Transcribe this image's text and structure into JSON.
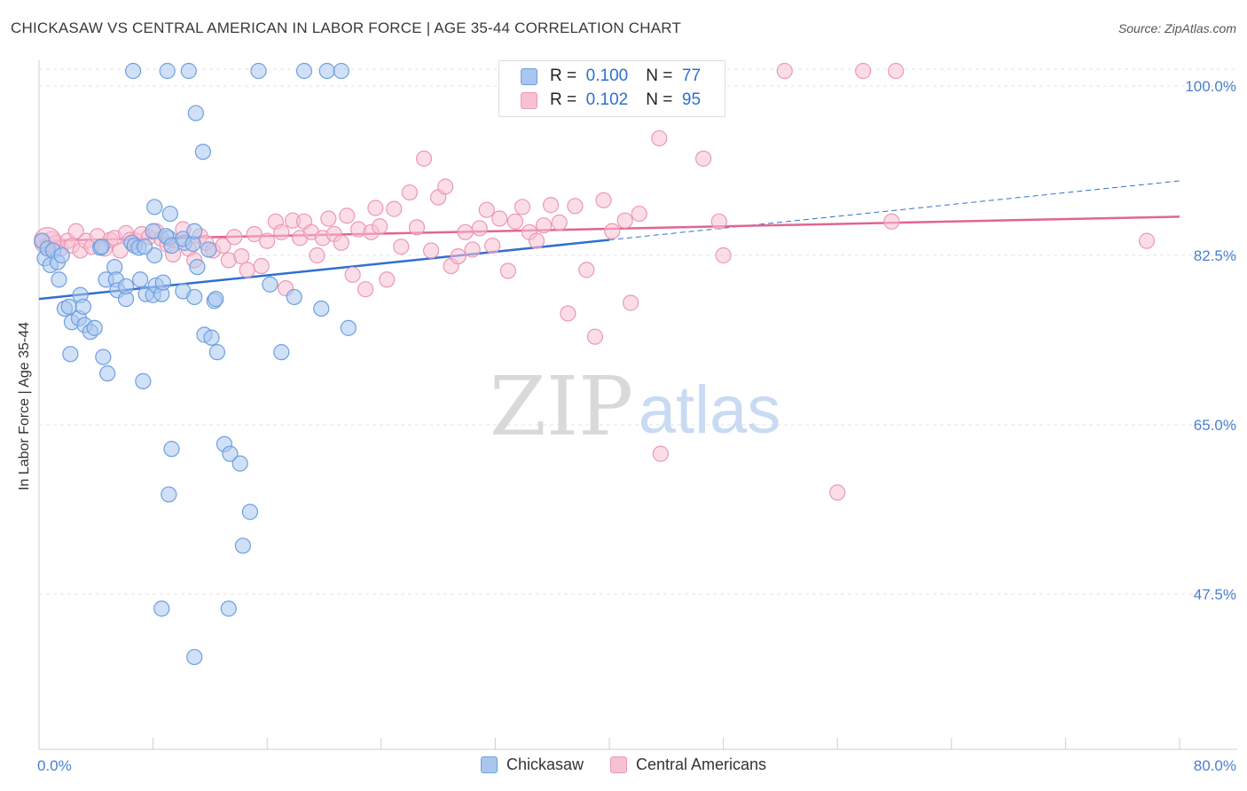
{
  "title": "CHICKASAW VS CENTRAL AMERICAN IN LABOR FORCE | AGE 35-44 CORRELATION CHART",
  "source": "Source: ZipAtlas.com",
  "watermark": {
    "zip": "ZIP",
    "atlas": "atlas"
  },
  "legend": {
    "r_label": "R =",
    "n_label": "N =",
    "series": [
      {
        "name": "Chickasaw",
        "r": "0.100",
        "n": "77"
      },
      {
        "name": "Central Americans",
        "r": "0.102",
        "n": "95"
      }
    ]
  },
  "colors": {
    "chickasaw_fill": "#a9c6ee",
    "chickasaw_stroke": "#6e9fe0",
    "chickasaw_line": "#2f6fd0",
    "central_fill": "#f7c1d3",
    "central_stroke": "#ec98b5",
    "central_line": "#e06593",
    "tick": "#4a7fd0"
  },
  "chart_data": {
    "type": "scatter",
    "title": "CHICKASAW VS CENTRAL AMERICAN IN LABOR FORCE | AGE 35-44 CORRELATION CHART",
    "ylabel": "In Labor Force | Age 35-44",
    "xlabel": "",
    "xlim": [
      0,
      80
    ],
    "ylim": [
      32,
      102
    ],
    "x_tick_labels": [
      "0.0%",
      "80.0%"
    ],
    "y_ticks": [
      47.5,
      65.0,
      82.5,
      100.0
    ],
    "y_tick_labels": [
      "47.5%",
      "65.0%",
      "82.5%",
      "100.0%"
    ],
    "grid": true,
    "legend_position": "top-center",
    "series": [
      {
        "name": "Chickasaw",
        "r": 0.1,
        "n": 77,
        "trend": {
          "x0": 0,
          "y0": 78.0,
          "x1": 40,
          "y1": 84.1,
          "dashed_to_x": 80,
          "dashed_to_y": 90.2
        },
        "points": [
          [
            0.2,
            84.0
          ],
          [
            0.4,
            82.2
          ],
          [
            0.6,
            83.2
          ],
          [
            0.8,
            81.5
          ],
          [
            1.0,
            83.0
          ],
          [
            1.3,
            81.8
          ],
          [
            1.4,
            80.0
          ],
          [
            1.6,
            82.5
          ],
          [
            1.8,
            77.0
          ],
          [
            2.1,
            77.2
          ],
          [
            2.3,
            75.6
          ],
          [
            2.8,
            76.0
          ],
          [
            2.9,
            78.4
          ],
          [
            3.1,
            77.2
          ],
          [
            3.2,
            75.3
          ],
          [
            3.6,
            74.6
          ],
          [
            3.9,
            75.0
          ],
          [
            2.2,
            72.3
          ],
          [
            4.5,
            72.0
          ],
          [
            4.8,
            70.3
          ],
          [
            4.7,
            80.0
          ],
          [
            5.3,
            81.3
          ],
          [
            5.4,
            80.0
          ],
          [
            5.5,
            78.9
          ],
          [
            4.3,
            83.3
          ],
          [
            4.4,
            83.4
          ],
          [
            6.1,
            78.0
          ],
          [
            6.1,
            79.3
          ],
          [
            6.5,
            83.8
          ],
          [
            6.7,
            83.5
          ],
          [
            7.1,
            80.0
          ],
          [
            7.0,
            83.3
          ],
          [
            7.3,
            69.5
          ],
          [
            7.5,
            78.5
          ],
          [
            8.1,
            82.5
          ],
          [
            7.4,
            83.4
          ],
          [
            8.0,
            78.4
          ],
          [
            8.2,
            79.4
          ],
          [
            8.1,
            87.5
          ],
          [
            8.0,
            85.0
          ],
          [
            8.6,
            78.5
          ],
          [
            8.7,
            79.7
          ],
          [
            9.2,
            86.8
          ],
          [
            9.1,
            84.3
          ],
          [
            8.9,
            84.5
          ],
          [
            9.3,
            83.5
          ],
          [
            10.1,
            78.8
          ],
          [
            10.2,
            83.8
          ],
          [
            10.9,
            78.2
          ],
          [
            10.1,
            84.2
          ],
          [
            11.1,
            81.3
          ],
          [
            10.8,
            83.7
          ],
          [
            10.9,
            85.0
          ],
          [
            11.6,
            74.3
          ],
          [
            12.1,
            74.0
          ],
          [
            12.3,
            77.8
          ],
          [
            12.4,
            78.0
          ],
          [
            12.5,
            72.5
          ],
          [
            11.9,
            83.1
          ],
          [
            11.5,
            93.2
          ],
          [
            9.3,
            62.5
          ],
          [
            9.1,
            57.8
          ],
          [
            8.6,
            46.0
          ],
          [
            10.9,
            41.0
          ],
          [
            13.0,
            63.0
          ],
          [
            13.4,
            62.0
          ],
          [
            13.3,
            46.0
          ],
          [
            14.1,
            61.0
          ],
          [
            14.3,
            52.5
          ],
          [
            14.8,
            56.0
          ],
          [
            16.2,
            79.5
          ],
          [
            17.0,
            72.5
          ],
          [
            17.9,
            78.2
          ],
          [
            19.8,
            77.0
          ],
          [
            21.7,
            75.0
          ],
          [
            9.0,
            100.5
          ],
          [
            11.0,
            97.2
          ]
        ],
        "top_points": [
          [
            6.6,
            101.0
          ],
          [
            10.5,
            101.0
          ],
          [
            15.4,
            101.0
          ],
          [
            18.6,
            101.0
          ],
          [
            20.2,
            101.0
          ],
          [
            21.2,
            101.0
          ]
        ]
      },
      {
        "name": "Central Americans",
        "r": 0.102,
        "n": 95,
        "trend": {
          "x0": 0,
          "y0": 84.0,
          "x1": 80,
          "y1": 86.5
        },
        "points": [
          [
            0.3,
            84.0
          ],
          [
            0.6,
            83.5
          ],
          [
            0.9,
            84.2
          ],
          [
            1.2,
            83.8
          ],
          [
            1.5,
            83.2
          ],
          [
            2.0,
            84.0
          ],
          [
            2.3,
            83.5
          ],
          [
            2.6,
            85.0
          ],
          [
            2.9,
            83.0
          ],
          [
            3.3,
            84.0
          ],
          [
            3.7,
            83.4
          ],
          [
            4.1,
            84.5
          ],
          [
            4.6,
            83.2
          ],
          [
            5.0,
            84.1
          ],
          [
            5.3,
            84.3
          ],
          [
            5.7,
            83.0
          ],
          [
            6.1,
            84.8
          ],
          [
            6.4,
            84.1
          ],
          [
            6.8,
            84.0
          ],
          [
            7.2,
            84.7
          ],
          [
            7.7,
            84.4
          ],
          [
            8.2,
            85.0
          ],
          [
            8.6,
            84.2
          ],
          [
            9.0,
            83.6
          ],
          [
            9.4,
            82.6
          ],
          [
            10.1,
            85.2
          ],
          [
            10.5,
            83.2
          ],
          [
            10.9,
            82.0
          ],
          [
            11.3,
            84.5
          ],
          [
            11.7,
            83.8
          ],
          [
            12.2,
            83.0
          ],
          [
            12.9,
            83.5
          ],
          [
            13.3,
            82.0
          ],
          [
            13.7,
            84.4
          ],
          [
            14.2,
            82.4
          ],
          [
            14.6,
            81.0
          ],
          [
            15.1,
            84.7
          ],
          [
            15.6,
            81.4
          ],
          [
            16.0,
            84.0
          ],
          [
            16.6,
            86.0
          ],
          [
            17.0,
            84.9
          ],
          [
            17.3,
            79.1
          ],
          [
            17.8,
            86.1
          ],
          [
            18.3,
            84.3
          ],
          [
            18.6,
            86.0
          ],
          [
            19.1,
            84.9
          ],
          [
            19.5,
            82.5
          ],
          [
            19.9,
            84.3
          ],
          [
            20.3,
            86.3
          ],
          [
            20.7,
            84.7
          ],
          [
            21.2,
            83.8
          ],
          [
            21.6,
            86.6
          ],
          [
            22.0,
            80.5
          ],
          [
            22.4,
            85.2
          ],
          [
            22.9,
            79.0
          ],
          [
            23.3,
            84.9
          ],
          [
            23.6,
            87.4
          ],
          [
            23.9,
            85.5
          ],
          [
            24.4,
            80.0
          ],
          [
            24.9,
            87.3
          ],
          [
            25.4,
            83.4
          ],
          [
            26.0,
            89.0
          ],
          [
            26.5,
            85.4
          ],
          [
            27.0,
            92.5
          ],
          [
            27.5,
            83.0
          ],
          [
            28.0,
            88.5
          ],
          [
            28.5,
            89.6
          ],
          [
            28.9,
            81.4
          ],
          [
            29.4,
            82.4
          ],
          [
            29.9,
            84.9
          ],
          [
            30.4,
            83.1
          ],
          [
            30.9,
            85.3
          ],
          [
            31.4,
            87.2
          ],
          [
            31.8,
            83.5
          ],
          [
            32.3,
            86.3
          ],
          [
            32.9,
            80.9
          ],
          [
            33.4,
            86.0
          ],
          [
            33.9,
            87.5
          ],
          [
            34.4,
            84.9
          ],
          [
            34.9,
            84.0
          ],
          [
            35.4,
            85.6
          ],
          [
            35.9,
            87.7
          ],
          [
            36.5,
            85.9
          ],
          [
            37.1,
            76.5
          ],
          [
            37.6,
            87.6
          ],
          [
            38.4,
            81.0
          ],
          [
            39.0,
            74.1
          ],
          [
            39.6,
            88.2
          ],
          [
            40.2,
            85.0
          ],
          [
            41.1,
            86.1
          ],
          [
            41.5,
            77.6
          ],
          [
            42.1,
            86.8
          ],
          [
            43.5,
            94.6
          ],
          [
            43.6,
            62.0
          ],
          [
            46.6,
            92.5
          ]
        ],
        "extra_points": [
          [
            47.7,
            86.0
          ],
          [
            48.0,
            82.5
          ],
          [
            56.0,
            58.0
          ],
          [
            59.8,
            86.0
          ],
          [
            77.7,
            84.0
          ]
        ],
        "top_points": [
          [
            52.3,
            101.0
          ],
          [
            57.8,
            101.0
          ],
          [
            60.1,
            101.0
          ]
        ]
      }
    ]
  }
}
